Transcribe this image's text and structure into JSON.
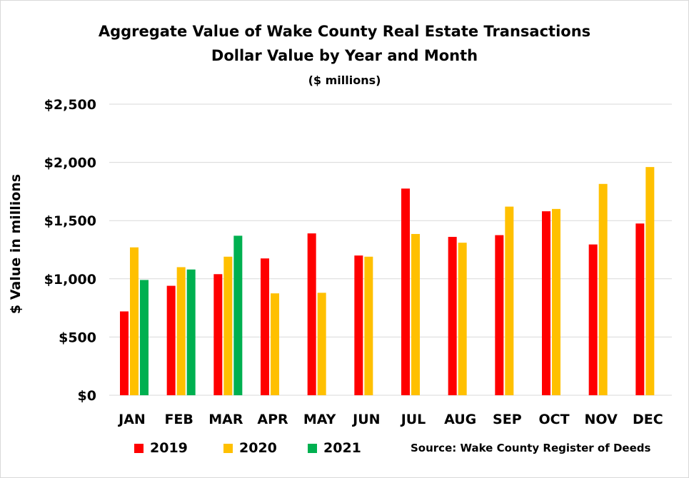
{
  "chart_data": {
    "type": "bar",
    "title": "Aggregate Value of Wake County Real Estate Transactions",
    "subtitle": "Dollar Value by Year and Month",
    "units": "($ millions)",
    "xlabel": "",
    "ylabel": "$ Value in millions",
    "ylim": [
      0,
      2500
    ],
    "yticks": [
      0,
      500,
      1000,
      1500,
      2000,
      2500
    ],
    "ytick_labels": [
      "$0",
      "$500",
      "$1,000",
      "$1,500",
      "$2,000",
      "$2,500"
    ],
    "grid": true,
    "legend_position": "bottom-left",
    "categories": [
      "JAN",
      "FEB",
      "MAR",
      "APR",
      "MAY",
      "JUN",
      "JUL",
      "AUG",
      "SEP",
      "OCT",
      "NOV",
      "DEC"
    ],
    "series": [
      {
        "name": "2019",
        "color": "#ff0000",
        "values": [
          720,
          940,
          1040,
          1175,
          1390,
          1200,
          1775,
          1360,
          1375,
          1580,
          1295,
          1475
        ]
      },
      {
        "name": "2020",
        "color": "#ffc000",
        "values": [
          1270,
          1100,
          1190,
          875,
          880,
          1190,
          1385,
          1310,
          1620,
          1600,
          1815,
          1960
        ]
      },
      {
        "name": "2021",
        "color": "#00b050",
        "values": [
          990,
          1080,
          1370,
          null,
          null,
          null,
          null,
          null,
          null,
          null,
          null,
          null
        ]
      }
    ],
    "source": "Source: Wake County Register of Deeds"
  }
}
